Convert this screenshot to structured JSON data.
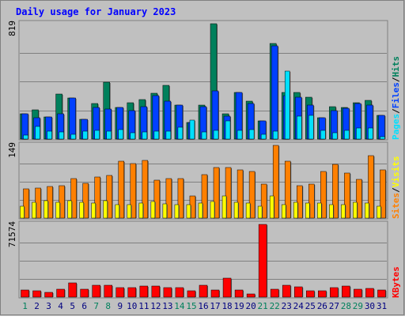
{
  "title": "Daily usage for January 2023",
  "colors": {
    "background": "#c0c0c0",
    "panel_border": "#808080",
    "grid": "#808080",
    "title": "#0000ff",
    "hits": "#00805c",
    "files": "#0040ff",
    "pages": "#00e0ff",
    "visits": "#ffff00",
    "sites": "#ff8000",
    "kbytes": "#ff0000",
    "weekend_label": "#00805c",
    "weekday_label": "#000080"
  },
  "chart_data": [
    {
      "type": "bar",
      "panel": "hits-files-pages",
      "max_label": "819",
      "ylim": [
        0,
        819
      ],
      "legend": [
        {
          "name": "Pages",
          "color": "#00e0ff"
        },
        {
          "name": "Files",
          "color": "#0040ff"
        },
        {
          "name": "Hits",
          "color": "#00805c"
        }
      ],
      "categories": [
        "1",
        "2",
        "3",
        "4",
        "5",
        "6",
        "7",
        "8",
        "9",
        "10",
        "11",
        "12",
        "13",
        "14",
        "15",
        "16",
        "17",
        "18",
        "19",
        "20",
        "21",
        "22",
        "23",
        "24",
        "25",
        "26",
        "27",
        "28",
        "29",
        "30",
        "31"
      ],
      "series": [
        {
          "name": "Hits",
          "values": [
            182,
            210,
            155,
            320,
            290,
            140,
            255,
            405,
            225,
            260,
            280,
            325,
            383,
            240,
            120,
            243,
            819,
            180,
            330,
            270,
            130,
            680,
            330,
            330,
            300,
            150,
            230,
            225,
            260,
            275,
            170
          ]
        },
        {
          "name": "Files",
          "values": [
            182,
            150,
            155,
            180,
            290,
            140,
            225,
            215,
            225,
            200,
            230,
            310,
            270,
            240,
            120,
            230,
            340,
            160,
            330,
            250,
            130,
            660,
            310,
            300,
            240,
            150,
            200,
            220,
            255,
            240,
            170
          ]
        },
        {
          "name": "Pages",
          "values": [
            30,
            90,
            55,
            50,
            35,
            55,
            60,
            55,
            70,
            45,
            50,
            55,
            55,
            85,
            135,
            50,
            60,
            130,
            60,
            70,
            35,
            55,
            480,
            160,
            170,
            60,
            45,
            60,
            80,
            80,
            15
          ]
        }
      ]
    },
    {
      "type": "bar",
      "panel": "visits-sites",
      "max_label": "149",
      "ylim": [
        0,
        149
      ],
      "legend": [
        {
          "name": "Sites",
          "color": "#ff8000"
        },
        {
          "name": "Visits",
          "color": "#ffff00"
        }
      ],
      "categories": [
        "1",
        "2",
        "3",
        "4",
        "5",
        "6",
        "7",
        "8",
        "9",
        "10",
        "11",
        "12",
        "13",
        "14",
        "15",
        "16",
        "17",
        "18",
        "19",
        "20",
        "21",
        "22",
        "23",
        "24",
        "25",
        "26",
        "27",
        "28",
        "29",
        "30",
        "31"
      ],
      "series": [
        {
          "name": "Sites",
          "values": [
            60,
            62,
            64,
            66,
            81,
            72,
            84,
            88,
            116,
            112,
            118,
            77,
            81,
            81,
            45,
            89,
            103,
            103,
            99,
            96,
            70,
            149,
            116,
            66,
            70,
            95,
            110,
            92,
            80,
            128,
            99
          ]
        },
        {
          "name": "Visits",
          "values": [
            24,
            32,
            36,
            33,
            35,
            33,
            30,
            35,
            27,
            28,
            30,
            34,
            29,
            28,
            28,
            30,
            34,
            45,
            32,
            30,
            24,
            46,
            27,
            32,
            30,
            30,
            27,
            27,
            33,
            30,
            25
          ]
        }
      ]
    },
    {
      "type": "bar",
      "panel": "kbytes",
      "max_label": "71574",
      "ylim": [
        0,
        71574
      ],
      "legend": [
        {
          "name": "KBytes",
          "color": "#ff0000"
        }
      ],
      "categories": [
        "1",
        "2",
        "3",
        "4",
        "5",
        "6",
        "7",
        "8",
        "9",
        "10",
        "11",
        "12",
        "13",
        "14",
        "15",
        "16",
        "17",
        "18",
        "19",
        "20",
        "21",
        "22",
        "23",
        "24",
        "25",
        "26",
        "27",
        "28",
        "29",
        "30",
        "31"
      ],
      "series": [
        {
          "name": "KBytes",
          "values": [
            7000,
            6500,
            4500,
            7500,
            14000,
            7500,
            11500,
            11500,
            9000,
            9000,
            11000,
            11000,
            9500,
            9000,
            6500,
            11500,
            7000,
            18500,
            7000,
            3000,
            71574,
            7500,
            11500,
            10500,
            6000,
            6000,
            9000,
            11000,
            7500,
            8500,
            7000
          ]
        }
      ]
    }
  ],
  "weekend_days": [
    1,
    7,
    8,
    14,
    15,
    21,
    22,
    28,
    29
  ]
}
